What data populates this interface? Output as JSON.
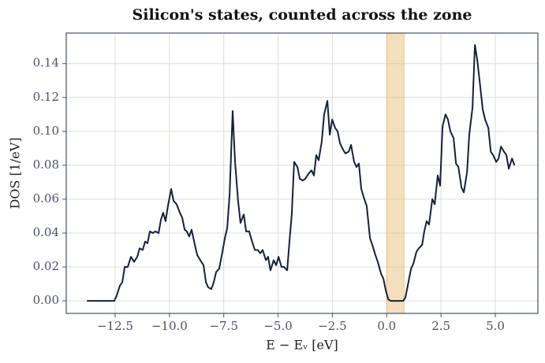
{
  "chart_data": {
    "type": "line",
    "title": "Silicon's states, counted across the zone",
    "xlabel": "E − Eᵥ  [eV]",
    "ylabel": "DOS  [1/eV]",
    "xlim": [
      -14.75,
      6.96
    ],
    "ylim": [
      -0.0074,
      0.158
    ],
    "xticks": [
      {
        "value": -12.5,
        "label": "−12.5"
      },
      {
        "value": -10,
        "label": "−10.0"
      },
      {
        "value": -7.5,
        "label": "−7.5"
      },
      {
        "value": -5,
        "label": "−5.0"
      },
      {
        "value": -2.5,
        "label": "−2.5"
      },
      {
        "value": 0,
        "label": "0.0"
      },
      {
        "value": 2.5,
        "label": "2.5"
      },
      {
        "value": 5,
        "label": "5.0"
      }
    ],
    "yticks": [
      {
        "value": 0,
        "label": "0.00"
      },
      {
        "value": 0.02,
        "label": "0.02"
      },
      {
        "value": 0.04,
        "label": "0.04"
      },
      {
        "value": 0.06,
        "label": "0.06"
      },
      {
        "value": 0.08,
        "label": "0.08"
      },
      {
        "value": 0.1,
        "label": "0.10"
      },
      {
        "value": 0.12,
        "label": "0.12"
      },
      {
        "value": 0.14,
        "label": "0.14"
      }
    ],
    "grid": true,
    "span": [
      0,
      0.8
    ],
    "span_color": "#e3b96f",
    "color": "#16203a",
    "x": [
      -13.8,
      -12.54,
      -12.43,
      -12.28,
      -12.17,
      -12.06,
      -11.92,
      -11.77,
      -11.63,
      -11.48,
      -11.37,
      -11.23,
      -11.12,
      -11.01,
      -10.9,
      -10.76,
      -10.65,
      -10.5,
      -10.39,
      -10.29,
      -10.18,
      -10.07,
      -9.92,
      -9.81,
      -9.67,
      -9.52,
      -9.41,
      -9.3,
      -9.2,
      -9.09,
      -8.98,
      -8.83,
      -8.72,
      -8.58,
      -8.43,
      -8.32,
      -8.22,
      -8.07,
      -7.96,
      -7.85,
      -7.71,
      -7.56,
      -7.45,
      -7.34,
      -7.23,
      -7.09,
      -6.98,
      -6.84,
      -6.73,
      -6.58,
      -6.47,
      -6.33,
      -6.22,
      -6.07,
      -5.93,
      -5.82,
      -5.71,
      -5.56,
      -5.46,
      -5.35,
      -5.2,
      -5.09,
      -4.98,
      -4.84,
      -4.73,
      -4.58,
      -4.47,
      -4.37,
      -4.26,
      -4.11,
      -4.0,
      -3.86,
      -3.75,
      -3.6,
      -3.46,
      -3.35,
      -3.24,
      -3.13,
      -2.99,
      -2.88,
      -2.73,
      -2.62,
      -2.51,
      -2.37,
      -2.26,
      -2.15,
      -2.0,
      -1.9,
      -1.75,
      -1.64,
      -1.5,
      -1.39,
      -1.28,
      -1.17,
      -1.03,
      -0.92,
      -0.77,
      -0.66,
      -0.52,
      -0.41,
      -0.26,
      -0.15,
      -0.04,
      0.07,
      0.17,
      0.76,
      0.86,
      0.97,
      1.12,
      1.23,
      1.37,
      1.48,
      1.63,
      1.73,
      1.84,
      1.95,
      2.1,
      2.21,
      2.35,
      2.46,
      2.57,
      2.71,
      2.82,
      2.93,
      3.08,
      3.19,
      3.3,
      3.44,
      3.55,
      3.7,
      3.8,
      3.95,
      4.06,
      4.17,
      4.31,
      4.42,
      4.53,
      4.68,
      4.79,
      4.9,
      5.04,
      5.15,
      5.26,
      5.4,
      5.51,
      5.62,
      5.77,
      5.88
    ],
    "values": [
      0,
      0,
      0.003,
      0.009,
      0.011,
      0.02,
      0.02,
      0.026,
      0.023,
      0.026,
      0.031,
      0.03,
      0.035,
      0.034,
      0.041,
      0.04,
      0.041,
      0.04,
      0.048,
      0.052,
      0.047,
      0.056,
      0.066,
      0.059,
      0.057,
      0.052,
      0.049,
      0.042,
      0.041,
      0.038,
      0.042,
      0.033,
      0.027,
      0.024,
      0.021,
      0.011,
      0.008,
      0.007,
      0.011,
      0.017,
      0.019,
      0.029,
      0.037,
      0.043,
      0.063,
      0.112,
      0.082,
      0.059,
      0.046,
      0.051,
      0.041,
      0.041,
      0.036,
      0.03,
      0.03,
      0.028,
      0.03,
      0.024,
      0.026,
      0.018,
      0.024,
      0.021,
      0.026,
      0.02,
      0.02,
      0.018,
      0.036,
      0.051,
      0.082,
      0.079,
      0.072,
      0.071,
      0.072,
      0.075,
      0.077,
      0.074,
      0.086,
      0.083,
      0.094,
      0.11,
      0.118,
      0.098,
      0.107,
      0.102,
      0.1,
      0.093,
      0.089,
      0.087,
      0.088,
      0.092,
      0.082,
      0.079,
      0.081,
      0.066,
      0.06,
      0.056,
      0.037,
      0.033,
      0.027,
      0.023,
      0.016,
      0.013,
      0.006,
      0.001,
      0,
      0,
      0.002,
      0.009,
      0.019,
      0.022,
      0.029,
      0.031,
      0.033,
      0.041,
      0.047,
      0.045,
      0.06,
      0.057,
      0.074,
      0.068,
      0.103,
      0.11,
      0.107,
      0.1,
      0.096,
      0.081,
      0.079,
      0.067,
      0.064,
      0.076,
      0.098,
      0.114,
      0.151,
      0.142,
      0.126,
      0.113,
      0.107,
      0.102,
      0.088,
      0.086,
      0.082,
      0.084,
      0.091,
      0.088,
      0.086,
      0.078,
      0.084,
      0.08
    ]
  }
}
